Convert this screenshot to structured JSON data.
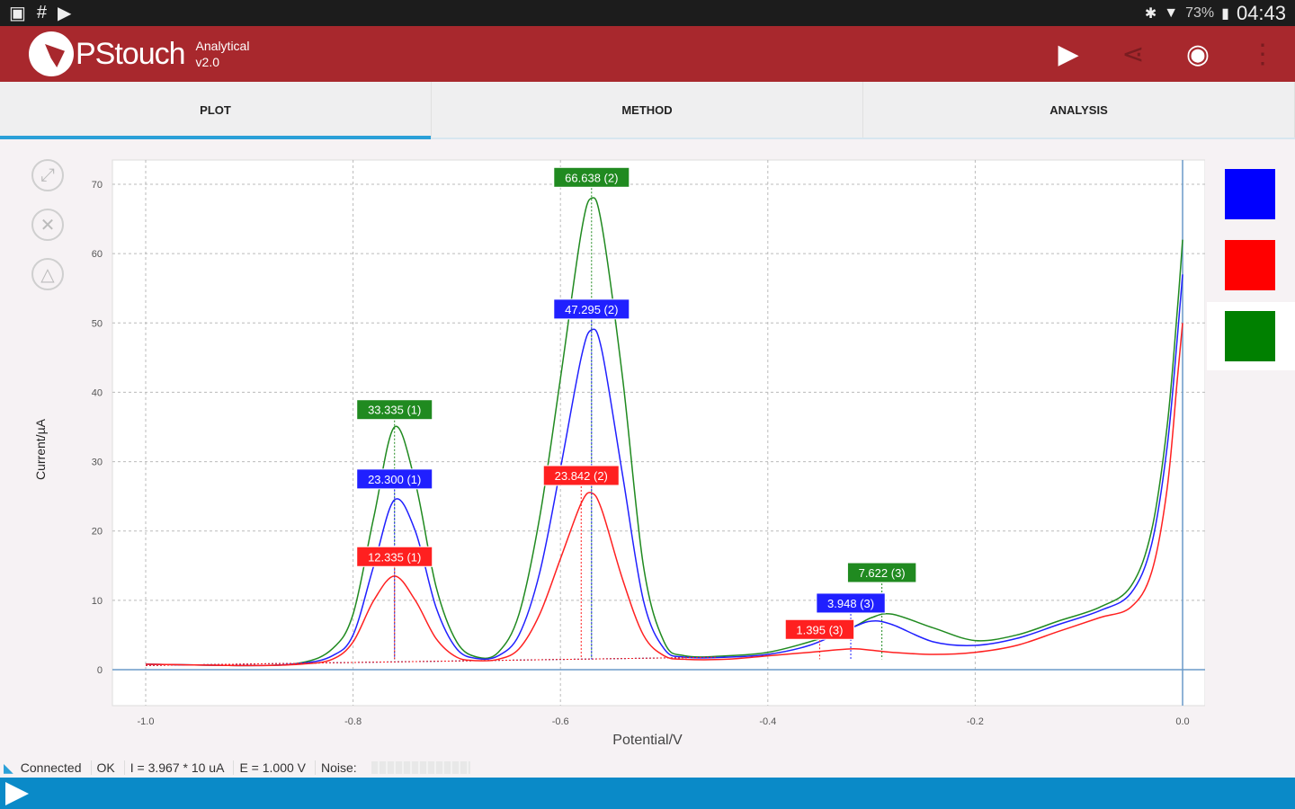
{
  "status_bar": {
    "time": "04:43",
    "battery": "73%"
  },
  "app": {
    "brand": "PStouch",
    "sub1": "Analytical",
    "sub2": "v2.0"
  },
  "tabs": [
    {
      "label": "PLOT"
    },
    {
      "label": "METHOD"
    },
    {
      "label": "ANALYSIS"
    }
  ],
  "footer": {
    "connection": "Connected",
    "state": "OK",
    "current": "I = 3.967 * 10 uA",
    "potential": "E = 1.000 V",
    "noise_label": "Noise:"
  },
  "colors": {
    "blue": "#0000ff",
    "red": "#ff0000",
    "green": "#008000",
    "accent": "#a8282d",
    "tab_accent": "#2aa0d8"
  },
  "chart_data": {
    "type": "line",
    "xlabel": "Potential/V",
    "ylabel": "Current/µA",
    "xlim": [
      -1.0,
      0.0
    ],
    "ylim": [
      0,
      70
    ],
    "xticks": [
      "-1.0",
      "-0.8",
      "-0.6",
      "-0.4",
      "-0.2",
      "0.0"
    ],
    "xtick_values": [
      -1.0,
      -0.8,
      -0.6,
      -0.4,
      -0.2,
      0.0
    ],
    "yticks": [
      "0",
      "10",
      "20",
      "30",
      "40",
      "50",
      "60",
      "70"
    ],
    "ytick_values": [
      0,
      10,
      20,
      30,
      40,
      50,
      60,
      70
    ],
    "grid": true,
    "x": [
      -1,
      -0.9,
      -0.85,
      -0.82,
      -0.8,
      -0.78,
      -0.76,
      -0.74,
      -0.72,
      -0.7,
      -0.68,
      -0.66,
      -0.64,
      -0.62,
      -0.6,
      -0.58,
      -0.57,
      -0.56,
      -0.54,
      -0.52,
      -0.5,
      -0.48,
      -0.44,
      -0.4,
      -0.36,
      -0.32,
      -0.3,
      -0.28,
      -0.24,
      -0.2,
      -0.16,
      -0.12,
      -0.08,
      -0.05,
      -0.03,
      -0.015,
      -0.005,
      0
    ],
    "series": [
      {
        "name": "green",
        "color": "#208a20",
        "values": [
          0.8,
          0.6,
          1,
          3,
          8,
          22,
          35,
          27,
          12,
          4,
          1.8,
          2.5,
          8,
          22,
          42,
          63,
          68,
          64,
          42,
          15,
          4,
          2,
          2,
          2.5,
          4,
          6,
          7.5,
          8,
          6,
          4.2,
          5,
          7,
          9,
          12,
          20,
          35,
          52,
          62
        ]
      },
      {
        "name": "blue",
        "color": "#2020ff",
        "values": [
          0.8,
          0.6,
          0.9,
          2,
          5,
          15,
          24.5,
          20,
          9,
          3,
          1.6,
          2,
          5,
          14,
          29,
          45,
          49,
          46,
          28,
          10,
          3,
          1.8,
          1.8,
          2.2,
          3.5,
          6,
          7,
          6.5,
          4,
          3.5,
          4.5,
          6.5,
          8.5,
          11,
          18,
          32,
          48,
          57
        ]
      },
      {
        "name": "red",
        "color": "#ff2020",
        "values": [
          0.8,
          0.6,
          0.8,
          1.5,
          4,
          10,
          13.5,
          10,
          4.5,
          1.8,
          1.3,
          1.5,
          3,
          8,
          16,
          24,
          25.5,
          23,
          13,
          5,
          2,
          1.5,
          1.5,
          2,
          2.5,
          3,
          2.8,
          2.5,
          2.2,
          2.5,
          3.5,
          5.5,
          7.5,
          9,
          14,
          26,
          42,
          50
        ]
      }
    ],
    "peak_labels": [
      {
        "text": "66.638 (2)",
        "series": "green",
        "x": -0.57,
        "y": 71
      },
      {
        "text": "47.295 (2)",
        "series": "blue",
        "x": -0.57,
        "y": 52
      },
      {
        "text": "23.842 (2)",
        "series": "red",
        "x": -0.58,
        "y": 28
      },
      {
        "text": "33.335 (1)",
        "series": "green",
        "x": -0.76,
        "y": 37.5
      },
      {
        "text": "23.300 (1)",
        "series": "blue",
        "x": -0.76,
        "y": 27.5
      },
      {
        "text": "12.335 (1)",
        "series": "red",
        "x": -0.76,
        "y": 16.3
      },
      {
        "text": "7.622 (3)",
        "series": "green",
        "x": -0.29,
        "y": 14
      },
      {
        "text": "3.948 (3)",
        "series": "blue",
        "x": -0.32,
        "y": 9.6
      },
      {
        "text": "1.395 (3)",
        "series": "red",
        "x": -0.35,
        "y": 5.8
      }
    ]
  }
}
